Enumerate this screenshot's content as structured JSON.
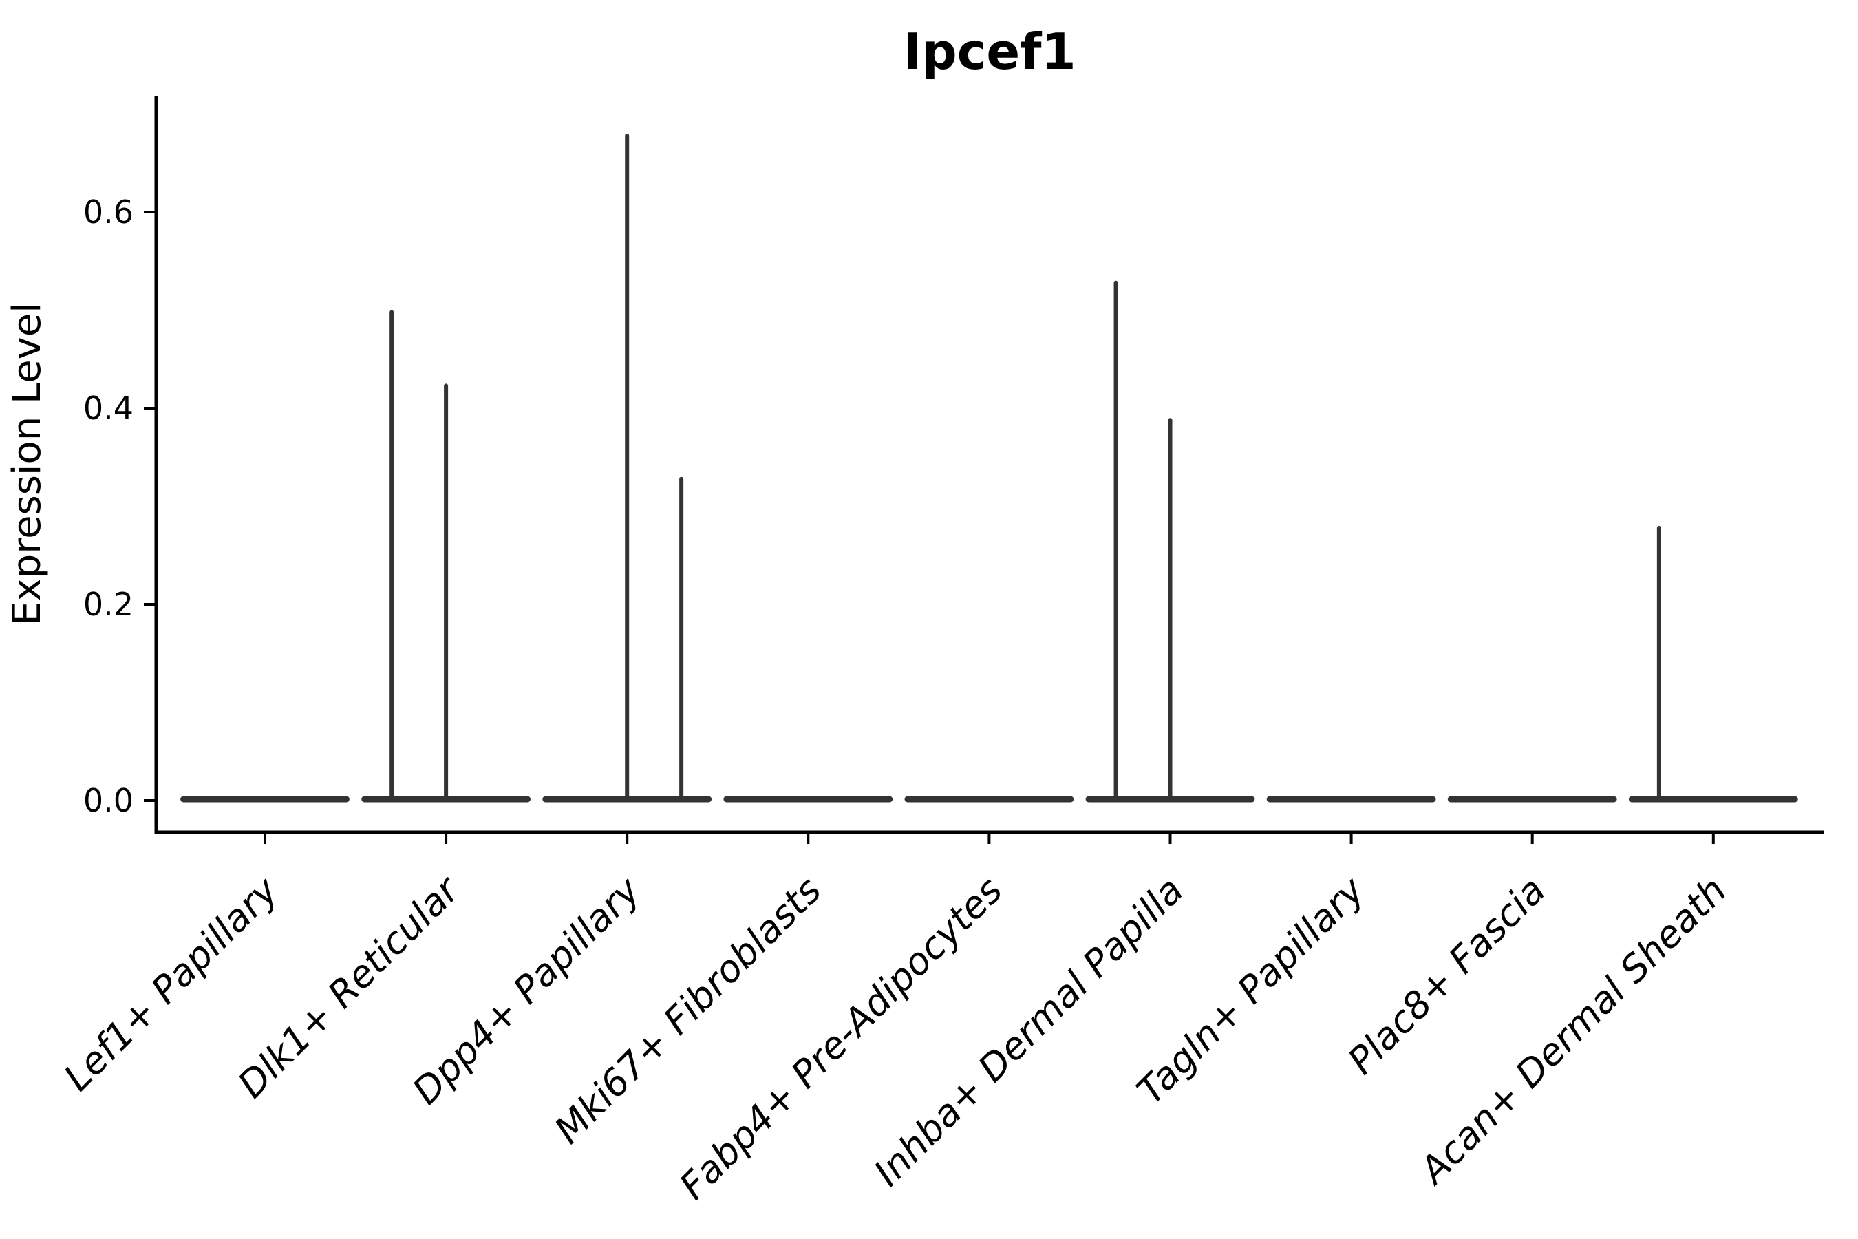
{
  "chart_data": {
    "type": "violin",
    "title": "Ipcef1",
    "ylabel": "Expression Level",
    "xlabel": "",
    "legend": "none",
    "grid": false,
    "background_color": "#ffffff",
    "violin_line_color": "#333333",
    "axis_color": "#000000",
    "x_label_rotation_deg": 45,
    "x_label_style": "italic",
    "ylim": [
      -0.033,
      0.72
    ],
    "ytick_labels": [
      "0.0",
      "0.2",
      "0.4",
      "0.6"
    ],
    "ytick_values": [
      0.0,
      0.2,
      0.4,
      0.6
    ],
    "categories": [
      "Lef1+ Papillary",
      "Dlk1+ Reticular",
      "Dpp4+ Papillary",
      "Mki67+ Fibroblasts",
      "Fabp4+ Pre-Adipocytes",
      "Inhba+ Dermal Papilla",
      "Tagln+ Papillary",
      "Plac8+ Fascia",
      "Acan+ Dermal Sheath"
    ],
    "violins": [
      {
        "category": "Lef1+ Papillary",
        "baseline_value": 0.0,
        "body_halfwidth": 0.45,
        "spikes": []
      },
      {
        "category": "Dlk1+ Reticular",
        "baseline_value": 0.0,
        "body_halfwidth": 0.45,
        "spikes": [
          {
            "offset": -0.3,
            "max": 0.5
          },
          {
            "offset": 0.0,
            "max": 0.425
          }
        ]
      },
      {
        "category": "Dpp4+ Papillary",
        "baseline_value": 0.0,
        "body_halfwidth": 0.45,
        "spikes": [
          {
            "offset": 0.0,
            "max": 0.68
          },
          {
            "offset": 0.3,
            "max": 0.33
          }
        ]
      },
      {
        "category": "Mki67+ Fibroblasts",
        "baseline_value": 0.0,
        "body_halfwidth": 0.45,
        "spikes": []
      },
      {
        "category": "Fabp4+ Pre-Adipocytes",
        "baseline_value": 0.0,
        "body_halfwidth": 0.45,
        "spikes": []
      },
      {
        "category": "Inhba+ Dermal Papilla",
        "baseline_value": 0.0,
        "body_halfwidth": 0.45,
        "spikes": [
          {
            "offset": -0.3,
            "max": 0.53
          },
          {
            "offset": 0.0,
            "max": 0.39
          }
        ]
      },
      {
        "category": "Tagln+ Papillary",
        "baseline_value": 0.0,
        "body_halfwidth": 0.45,
        "spikes": []
      },
      {
        "category": "Plac8+ Fascia",
        "baseline_value": 0.0,
        "body_halfwidth": 0.45,
        "spikes": []
      },
      {
        "category": "Acan+ Dermal Sheath",
        "baseline_value": 0.0,
        "body_halfwidth": 0.45,
        "spikes": [
          {
            "offset": -0.3,
            "max": 0.28
          }
        ]
      }
    ]
  }
}
